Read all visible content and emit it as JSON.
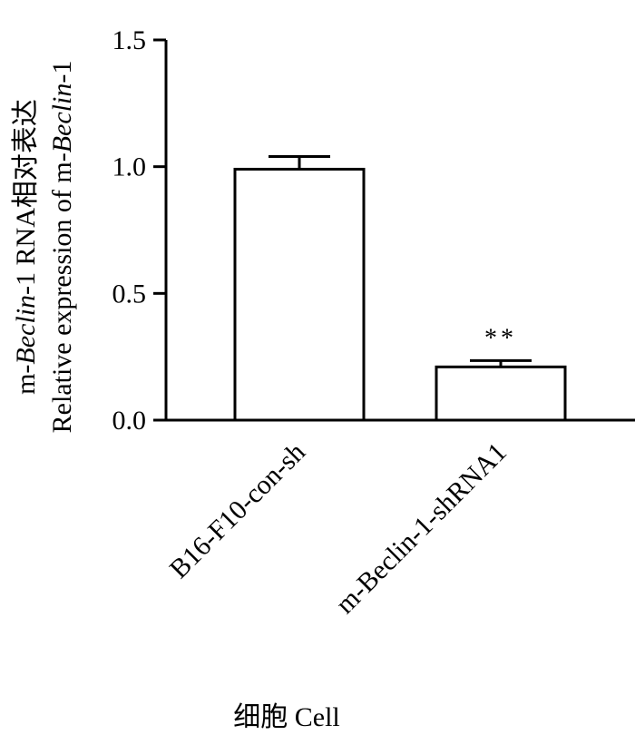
{
  "chart_data": {
    "type": "bar",
    "categories": [
      "B16-F10-con-sh",
      "m-Beclin-1-shRNA1"
    ],
    "values": [
      0.99,
      0.21
    ],
    "errors": [
      0.05,
      0.025
    ],
    "significance": [
      "",
      "**"
    ],
    "ylim": [
      0,
      1.5
    ],
    "yticks": [
      "0.0",
      "0.5",
      "1.0",
      "1.5"
    ],
    "ylabel_line1": {
      "prefix": "m-",
      "italic": "Beclin",
      "suffix": "-1 RNA相对表达"
    },
    "ylabel_line2": {
      "prefix": "Relative expression of m-",
      "italic": "Beclin",
      "suffix": "-1"
    },
    "xlabel": "细胞 Cell",
    "grid": false,
    "bar_fill": "#ffffff",
    "bar_stroke": "#000000"
  }
}
